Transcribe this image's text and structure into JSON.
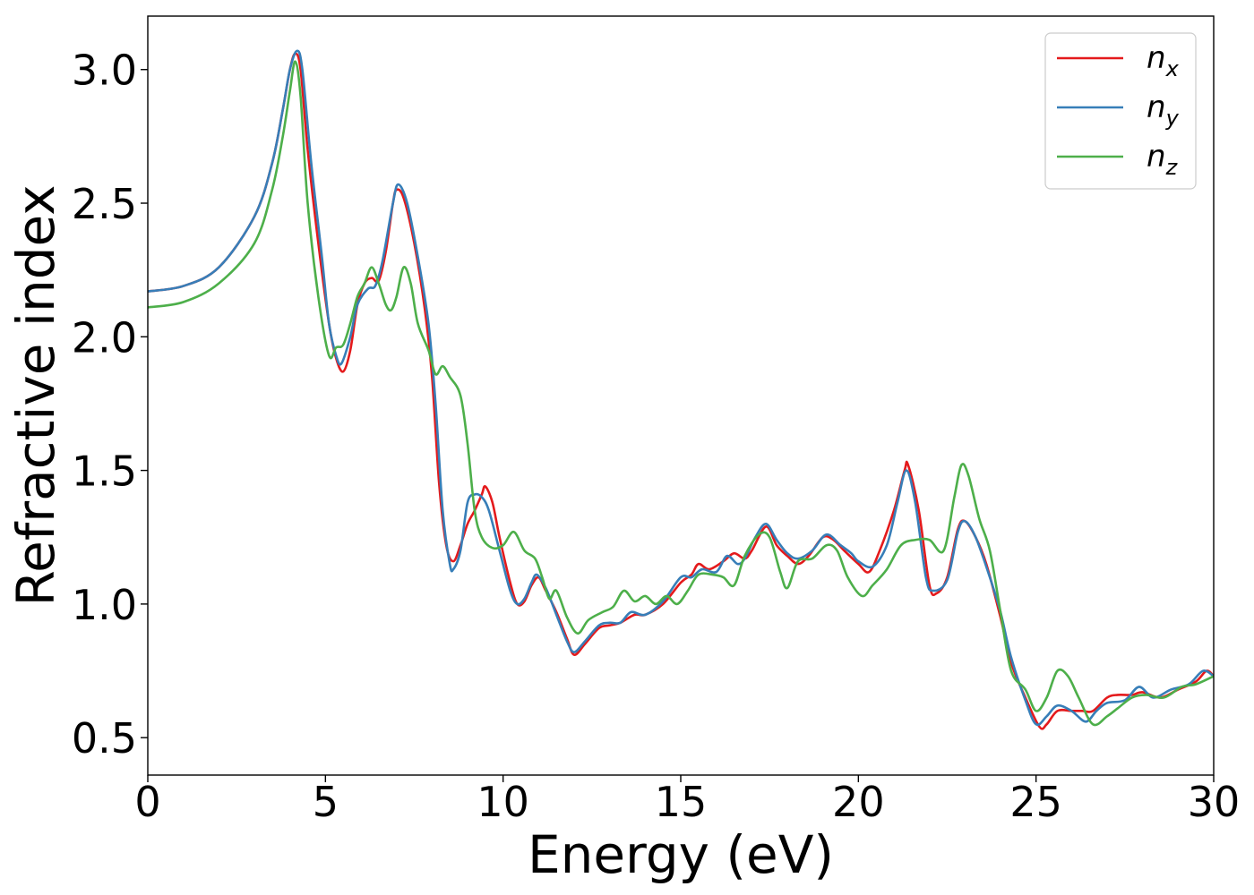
{
  "chart_data": {
    "type": "line",
    "title": "",
    "xlabel": "Energy (eV)",
    "ylabel": "Refractive index",
    "xlim": [
      0,
      30
    ],
    "ylim": [
      0.36,
      3.2
    ],
    "xticks": [
      0,
      5,
      10,
      15,
      20,
      25,
      30
    ],
    "yticks": [
      0.5,
      1.0,
      1.5,
      2.0,
      2.5,
      3.0
    ],
    "xtick_labels": [
      "0",
      "5",
      "10",
      "15",
      "20",
      "25",
      "30"
    ],
    "ytick_labels": [
      "0.5",
      "1.0",
      "1.5",
      "2.0",
      "2.5",
      "3.0"
    ],
    "grid": false,
    "legend": "top-right",
    "series": [
      {
        "name": "n_x",
        "legend_base": "n",
        "legend_sub": "x",
        "color": "#e41a1c",
        "points": [
          [
            0,
            2.17
          ],
          [
            1,
            2.19
          ],
          [
            2,
            2.26
          ],
          [
            3,
            2.45
          ],
          [
            3.5,
            2.65
          ],
          [
            3.8,
            2.85
          ],
          [
            4.0,
            3.0
          ],
          [
            4.15,
            3.06
          ],
          [
            4.3,
            3.0
          ],
          [
            4.5,
            2.7
          ],
          [
            4.8,
            2.35
          ],
          [
            5.1,
            2.05
          ],
          [
            5.3,
            1.92
          ],
          [
            5.5,
            1.87
          ],
          [
            5.7,
            1.95
          ],
          [
            5.9,
            2.12
          ],
          [
            6.1,
            2.2
          ],
          [
            6.3,
            2.22
          ],
          [
            6.5,
            2.21
          ],
          [
            6.7,
            2.32
          ],
          [
            6.9,
            2.5
          ],
          [
            7.0,
            2.55
          ],
          [
            7.2,
            2.52
          ],
          [
            7.5,
            2.35
          ],
          [
            7.8,
            2.1
          ],
          [
            8.0,
            1.85
          ],
          [
            8.2,
            1.45
          ],
          [
            8.4,
            1.22
          ],
          [
            8.6,
            1.16
          ],
          [
            8.8,
            1.22
          ],
          [
            9.0,
            1.3
          ],
          [
            9.2,
            1.35
          ],
          [
            9.4,
            1.41
          ],
          [
            9.5,
            1.44
          ],
          [
            9.7,
            1.38
          ],
          [
            9.9,
            1.25
          ],
          [
            10.2,
            1.08
          ],
          [
            10.4,
            1.0
          ],
          [
            10.6,
            1.01
          ],
          [
            10.8,
            1.07
          ],
          [
            11.0,
            1.1
          ],
          [
            11.2,
            1.05
          ],
          [
            11.5,
            0.97
          ],
          [
            11.8,
            0.87
          ],
          [
            12.0,
            0.81
          ],
          [
            12.3,
            0.85
          ],
          [
            12.7,
            0.91
          ],
          [
            13.0,
            0.92
          ],
          [
            13.3,
            0.93
          ],
          [
            13.7,
            0.96
          ],
          [
            14.0,
            0.96
          ],
          [
            14.5,
            1.0
          ],
          [
            15.0,
            1.08
          ],
          [
            15.3,
            1.11
          ],
          [
            15.5,
            1.15
          ],
          [
            15.8,
            1.13
          ],
          [
            16.2,
            1.16
          ],
          [
            16.5,
            1.19
          ],
          [
            16.8,
            1.17
          ],
          [
            17.0,
            1.2
          ],
          [
            17.4,
            1.29
          ],
          [
            17.7,
            1.22
          ],
          [
            18.0,
            1.18
          ],
          [
            18.3,
            1.15
          ],
          [
            18.6,
            1.18
          ],
          [
            19.0,
            1.25
          ],
          [
            19.3,
            1.24
          ],
          [
            19.6,
            1.2
          ],
          [
            20.0,
            1.15
          ],
          [
            20.3,
            1.12
          ],
          [
            20.6,
            1.2
          ],
          [
            21.0,
            1.35
          ],
          [
            21.3,
            1.5
          ],
          [
            21.4,
            1.52
          ],
          [
            21.7,
            1.35
          ],
          [
            22.0,
            1.07
          ],
          [
            22.2,
            1.04
          ],
          [
            22.5,
            1.1
          ],
          [
            22.8,
            1.28
          ],
          [
            23.0,
            1.31
          ],
          [
            23.3,
            1.25
          ],
          [
            23.6,
            1.15
          ],
          [
            24.0,
            0.95
          ],
          [
            24.3,
            0.78
          ],
          [
            24.7,
            0.65
          ],
          [
            25.1,
            0.54
          ],
          [
            25.3,
            0.55
          ],
          [
            25.6,
            0.6
          ],
          [
            26.0,
            0.6
          ],
          [
            26.3,
            0.6
          ],
          [
            26.6,
            0.6
          ],
          [
            27.0,
            0.65
          ],
          [
            27.3,
            0.66
          ],
          [
            27.7,
            0.66
          ],
          [
            28.0,
            0.67
          ],
          [
            28.5,
            0.65
          ],
          [
            29.0,
            0.68
          ],
          [
            29.5,
            0.71
          ],
          [
            29.8,
            0.75
          ],
          [
            30,
            0.73
          ]
        ]
      },
      {
        "name": "n_y",
        "legend_base": "n",
        "legend_sub": "y",
        "color": "#377eb8",
        "points": [
          [
            0,
            2.17
          ],
          [
            1,
            2.19
          ],
          [
            2,
            2.26
          ],
          [
            3,
            2.45
          ],
          [
            3.5,
            2.65
          ],
          [
            3.8,
            2.85
          ],
          [
            4.0,
            3.0
          ],
          [
            4.2,
            3.07
          ],
          [
            4.35,
            3.0
          ],
          [
            4.6,
            2.65
          ],
          [
            4.9,
            2.3
          ],
          [
            5.1,
            2.05
          ],
          [
            5.3,
            1.93
          ],
          [
            5.45,
            1.9
          ],
          [
            5.7,
            2.0
          ],
          [
            5.9,
            2.12
          ],
          [
            6.2,
            2.18
          ],
          [
            6.4,
            2.19
          ],
          [
            6.6,
            2.28
          ],
          [
            6.9,
            2.5
          ],
          [
            7.05,
            2.57
          ],
          [
            7.3,
            2.5
          ],
          [
            7.6,
            2.3
          ],
          [
            7.9,
            2.05
          ],
          [
            8.1,
            1.75
          ],
          [
            8.3,
            1.35
          ],
          [
            8.5,
            1.15
          ],
          [
            8.6,
            1.13
          ],
          [
            8.8,
            1.2
          ],
          [
            9.0,
            1.38
          ],
          [
            9.2,
            1.41
          ],
          [
            9.4,
            1.4
          ],
          [
            9.6,
            1.35
          ],
          [
            9.9,
            1.2
          ],
          [
            10.2,
            1.05
          ],
          [
            10.4,
            1.0
          ],
          [
            10.6,
            1.02
          ],
          [
            10.8,
            1.08
          ],
          [
            10.95,
            1.11
          ],
          [
            11.2,
            1.06
          ],
          [
            11.5,
            0.96
          ],
          [
            11.8,
            0.86
          ],
          [
            12.0,
            0.82
          ],
          [
            12.3,
            0.86
          ],
          [
            12.7,
            0.92
          ],
          [
            13.0,
            0.93
          ],
          [
            13.3,
            0.93
          ],
          [
            13.6,
            0.97
          ],
          [
            14.0,
            0.96
          ],
          [
            14.5,
            1.01
          ],
          [
            15.0,
            1.1
          ],
          [
            15.3,
            1.1
          ],
          [
            15.6,
            1.13
          ],
          [
            16.0,
            1.12
          ],
          [
            16.3,
            1.18
          ],
          [
            16.6,
            1.15
          ],
          [
            16.8,
            1.17
          ],
          [
            17.1,
            1.25
          ],
          [
            17.4,
            1.3
          ],
          [
            17.7,
            1.24
          ],
          [
            18.0,
            1.19
          ],
          [
            18.3,
            1.17
          ],
          [
            18.7,
            1.2
          ],
          [
            19.1,
            1.26
          ],
          [
            19.5,
            1.22
          ],
          [
            19.8,
            1.19
          ],
          [
            20.0,
            1.16
          ],
          [
            20.4,
            1.14
          ],
          [
            20.8,
            1.22
          ],
          [
            21.1,
            1.38
          ],
          [
            21.35,
            1.5
          ],
          [
            21.6,
            1.38
          ],
          [
            21.9,
            1.1
          ],
          [
            22.1,
            1.05
          ],
          [
            22.5,
            1.09
          ],
          [
            22.8,
            1.27
          ],
          [
            23.0,
            1.31
          ],
          [
            23.3,
            1.25
          ],
          [
            23.7,
            1.1
          ],
          [
            24.0,
            0.97
          ],
          [
            24.3,
            0.8
          ],
          [
            24.7,
            0.64
          ],
          [
            25.0,
            0.55
          ],
          [
            25.3,
            0.58
          ],
          [
            25.6,
            0.62
          ],
          [
            26.0,
            0.6
          ],
          [
            26.4,
            0.56
          ],
          [
            26.7,
            0.6
          ],
          [
            27.0,
            0.63
          ],
          [
            27.5,
            0.64
          ],
          [
            27.9,
            0.69
          ],
          [
            28.3,
            0.65
          ],
          [
            28.8,
            0.68
          ],
          [
            29.3,
            0.7
          ],
          [
            29.7,
            0.75
          ],
          [
            30,
            0.73
          ]
        ]
      },
      {
        "name": "n_z",
        "legend_base": "n",
        "legend_sub": "z",
        "color": "#4daf4a",
        "points": [
          [
            0,
            2.11
          ],
          [
            1,
            2.13
          ],
          [
            2,
            2.2
          ],
          [
            3,
            2.35
          ],
          [
            3.5,
            2.55
          ],
          [
            3.8,
            2.75
          ],
          [
            4.0,
            2.92
          ],
          [
            4.15,
            3.03
          ],
          [
            4.3,
            2.9
          ],
          [
            4.5,
            2.5
          ],
          [
            4.8,
            2.15
          ],
          [
            5.1,
            1.93
          ],
          [
            5.3,
            1.96
          ],
          [
            5.5,
            1.97
          ],
          [
            5.7,
            2.05
          ],
          [
            5.9,
            2.15
          ],
          [
            6.1,
            2.2
          ],
          [
            6.3,
            2.26
          ],
          [
            6.5,
            2.2
          ],
          [
            6.7,
            2.12
          ],
          [
            6.85,
            2.1
          ],
          [
            7.0,
            2.15
          ],
          [
            7.2,
            2.26
          ],
          [
            7.4,
            2.2
          ],
          [
            7.6,
            2.05
          ],
          [
            7.9,
            1.95
          ],
          [
            8.1,
            1.86
          ],
          [
            8.3,
            1.89
          ],
          [
            8.5,
            1.85
          ],
          [
            8.8,
            1.78
          ],
          [
            9.0,
            1.6
          ],
          [
            9.2,
            1.35
          ],
          [
            9.4,
            1.25
          ],
          [
            9.7,
            1.21
          ],
          [
            10.0,
            1.22
          ],
          [
            10.3,
            1.27
          ],
          [
            10.6,
            1.2
          ],
          [
            10.9,
            1.17
          ],
          [
            11.1,
            1.1
          ],
          [
            11.3,
            1.02
          ],
          [
            11.5,
            1.05
          ],
          [
            11.8,
            0.95
          ],
          [
            12.1,
            0.89
          ],
          [
            12.4,
            0.94
          ],
          [
            12.8,
            0.97
          ],
          [
            13.1,
            0.99
          ],
          [
            13.4,
            1.05
          ],
          [
            13.7,
            1.01
          ],
          [
            14.0,
            1.03
          ],
          [
            14.3,
            1.0
          ],
          [
            14.6,
            1.03
          ],
          [
            14.9,
            1.0
          ],
          [
            15.2,
            1.05
          ],
          [
            15.5,
            1.11
          ],
          [
            15.9,
            1.11
          ],
          [
            16.2,
            1.1
          ],
          [
            16.5,
            1.07
          ],
          [
            16.8,
            1.18
          ],
          [
            17.2,
            1.26
          ],
          [
            17.5,
            1.25
          ],
          [
            17.8,
            1.12
          ],
          [
            18.0,
            1.06
          ],
          [
            18.3,
            1.16
          ],
          [
            18.7,
            1.17
          ],
          [
            19.1,
            1.22
          ],
          [
            19.4,
            1.2
          ],
          [
            19.7,
            1.1
          ],
          [
            20.1,
            1.03
          ],
          [
            20.4,
            1.07
          ],
          [
            20.8,
            1.13
          ],
          [
            21.2,
            1.22
          ],
          [
            21.6,
            1.24
          ],
          [
            22.0,
            1.24
          ],
          [
            22.4,
            1.2
          ],
          [
            22.7,
            1.4
          ],
          [
            22.9,
            1.52
          ],
          [
            23.1,
            1.48
          ],
          [
            23.4,
            1.32
          ],
          [
            23.7,
            1.2
          ],
          [
            24.0,
            0.97
          ],
          [
            24.3,
            0.75
          ],
          [
            24.7,
            0.68
          ],
          [
            25.0,
            0.6
          ],
          [
            25.3,
            0.65
          ],
          [
            25.6,
            0.75
          ],
          [
            25.9,
            0.73
          ],
          [
            26.2,
            0.65
          ],
          [
            26.6,
            0.55
          ],
          [
            27.0,
            0.58
          ],
          [
            27.3,
            0.61
          ],
          [
            27.7,
            0.65
          ],
          [
            28.1,
            0.66
          ],
          [
            28.6,
            0.65
          ],
          [
            29.1,
            0.69
          ],
          [
            29.5,
            0.7
          ],
          [
            30,
            0.73
          ]
        ]
      }
    ]
  }
}
